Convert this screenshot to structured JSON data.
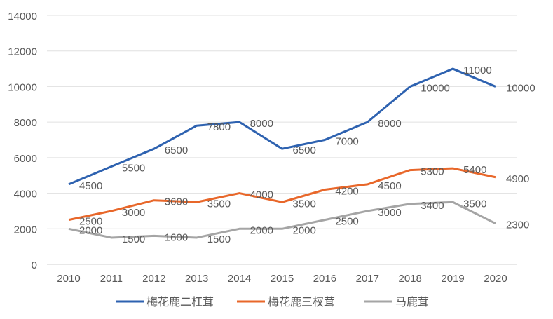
{
  "chart_data": {
    "type": "line",
    "title": "",
    "xlabel": "",
    "ylabel": "",
    "ylim": [
      0,
      14000
    ],
    "yticks": [
      0,
      2000,
      4000,
      6000,
      8000,
      10000,
      12000,
      14000
    ],
    "grid": true,
    "legend_position": "bottom",
    "categories": [
      "2010",
      "2011",
      "2012",
      "2013",
      "2014",
      "2015",
      "2016",
      "2017",
      "2018",
      "2019",
      "2020"
    ],
    "series": [
      {
        "name": "梅花鹿二杠茸",
        "color": "#2e62b0",
        "values": [
          4500,
          5500,
          6500,
          7800,
          8000,
          6500,
          7000,
          8000,
          10000,
          11000,
          10000
        ]
      },
      {
        "name": "梅花鹿三杈茸",
        "color": "#e8672a",
        "values": [
          2500,
          3000,
          3600,
          3500,
          4000,
          3500,
          4200,
          4500,
          5300,
          5400,
          4900
        ]
      },
      {
        "name": "马鹿茸",
        "color": "#a5a5a5",
        "values": [
          2000,
          1500,
          1600,
          1500,
          2000,
          2000,
          2500,
          3000,
          3400,
          3500,
          2300
        ]
      }
    ],
    "data_labels": true
  }
}
